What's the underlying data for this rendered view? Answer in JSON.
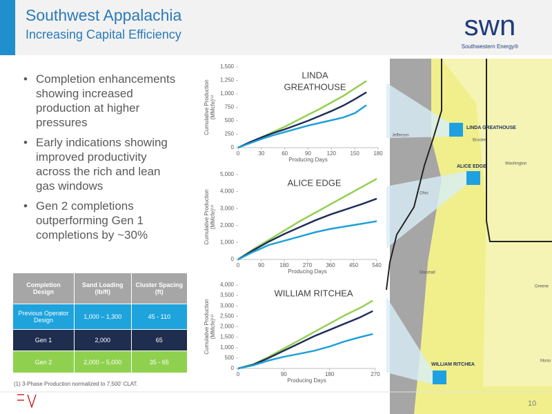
{
  "header": {
    "title": "Southwest Appalachia",
    "subtitle": "Increasing Capital Efficiency",
    "logo": "swn",
    "logo_tagline": "Southwestern Energy®"
  },
  "bullets": [
    "Completion enhancements showing increased production at higher pressures",
    "Early indications showing improved productivity across the rich and lean gas windows",
    "Gen 2 completions outperforming Gen 1 completions by ~30%"
  ],
  "table": {
    "header": [
      "Completion Design",
      "Sand Loading (lb/ft)",
      "Cluster Spacing (ft)"
    ],
    "rows": [
      [
        "Previous Operator Design",
        "1,000 – 1,300",
        "45 - 110"
      ],
      [
        "Gen 1",
        "2,000",
        "65"
      ],
      [
        "Gen 2",
        "2,000 – 5,000",
        "35 - 65"
      ]
    ]
  },
  "footnote": "(1) 3-Phase Production normalized to 7,500’ CLAT.",
  "page_number": "10",
  "map": {
    "wells": [
      "LINDA GREATHOUSE",
      "ALICE EDGE",
      "WILLIAM RITCHEA"
    ],
    "places": [
      "Jefferson",
      "Brooke",
      "Washington",
      "Ohio",
      "Marshall",
      "Greene",
      "Mono"
    ]
  },
  "chart_data": [
    {
      "type": "line",
      "title": [
        "LINDA",
        "GREATHOUSE"
      ],
      "x_label": "Producing Days",
      "y_label": [
        "Cumulative Production",
        "(MMcfe)⁽¹⁾"
      ],
      "x": [
        0,
        15,
        30,
        45,
        60,
        75,
        90,
        105,
        120,
        135,
        150,
        165
      ],
      "series": [
        {
          "color": "#92d050",
          "values": [
            0,
            90,
            190,
            290,
            390,
            500,
            610,
            720,
            840,
            960,
            1100,
            1240
          ]
        },
        {
          "color": "#1f2d5a",
          "values": [
            0,
            100,
            190,
            270,
            340,
            420,
            500,
            590,
            680,
            780,
            900,
            1030
          ]
        },
        {
          "color": "#1fa0d8",
          "values": [
            0,
            80,
            160,
            230,
            290,
            350,
            410,
            460,
            510,
            560,
            640,
            790
          ]
        }
      ],
      "xlim": [
        0,
        180
      ],
      "xticks": [
        0,
        30,
        60,
        90,
        120,
        150,
        180
      ],
      "ylim": [
        0,
        1500
      ],
      "yticks": [
        0,
        250,
        500,
        750,
        {
          "value": 1000,
          "label": "1,000"
        },
        {
          "value": 1250,
          "label": "1,250"
        },
        {
          "value": 1500,
          "label": "1,500"
        }
      ]
    },
    {
      "type": "line",
      "title": [
        "ALICE EDGE"
      ],
      "x_label": "Producing Days",
      "y_label": [
        "Cumulative Production",
        "(MMcfe)⁽¹⁾"
      ],
      "x": [
        0,
        60,
        120,
        180,
        240,
        300,
        360,
        420,
        480,
        540
      ],
      "series": [
        {
          "color": "#92d050",
          "values": [
            0,
            600,
            1150,
            1700,
            2250,
            2750,
            3250,
            3750,
            4250,
            4750
          ]
        },
        {
          "color": "#1f2d5a",
          "values": [
            0,
            550,
            1050,
            1500,
            1900,
            2300,
            2650,
            2950,
            3250,
            3580
          ]
        },
        {
          "color": "#1fa0d8",
          "values": [
            0,
            450,
            850,
            1100,
            1350,
            1600,
            1800,
            1950,
            2100,
            2250
          ]
        }
      ],
      "xlim": [
        0,
        540
      ],
      "xticks": [
        0,
        90,
        180,
        270,
        360,
        450,
        540
      ],
      "ylim": [
        0,
        5000
      ],
      "yticks": [
        0,
        {
          "value": 1000,
          "label": "1,000"
        },
        {
          "value": 2000,
          "label": "2,000"
        },
        {
          "value": 3000,
          "label": "3,000"
        },
        {
          "value": 4000,
          "label": "4,000"
        },
        {
          "value": 5000,
          "label": "5,000"
        }
      ]
    },
    {
      "type": "line",
      "title": [
        "WILLIAM RITCHEA"
      ],
      "x_label": "Producing Days",
      "y_label": [
        "Cumulative Production",
        "(MMcfe)⁽¹⁾"
      ],
      "x": [
        0,
        30,
        60,
        90,
        120,
        150,
        180,
        210,
        240,
        265
      ],
      "series": [
        {
          "color": "#92d050",
          "values": [
            0,
            200,
            550,
            950,
            1350,
            1750,
            2150,
            2550,
            2900,
            3250
          ]
        },
        {
          "color": "#1f2d5a",
          "values": [
            0,
            180,
            500,
            850,
            1200,
            1550,
            1850,
            2150,
            2450,
            2750
          ]
        },
        {
          "color": "#1fa0d8",
          "values": [
            0,
            150,
            380,
            560,
            700,
            850,
            1050,
            1300,
            1500,
            1650
          ]
        }
      ],
      "xlim": [
        0,
        270
      ],
      "xticks": [
        0,
        90,
        180,
        270
      ],
      "ylim": [
        0,
        4000
      ],
      "yticks": [
        0,
        500,
        {
          "value": 1000,
          "label": "1,000"
        },
        {
          "value": 1500,
          "label": "1,500"
        },
        {
          "value": 2000,
          "label": "2,000"
        },
        {
          "value": 2500,
          "label": "2,500"
        },
        {
          "value": 3000,
          "label": "3,000"
        },
        {
          "value": 3500,
          "label": "3,500"
        },
        {
          "value": 4000,
          "label": "4,000"
        }
      ]
    }
  ]
}
